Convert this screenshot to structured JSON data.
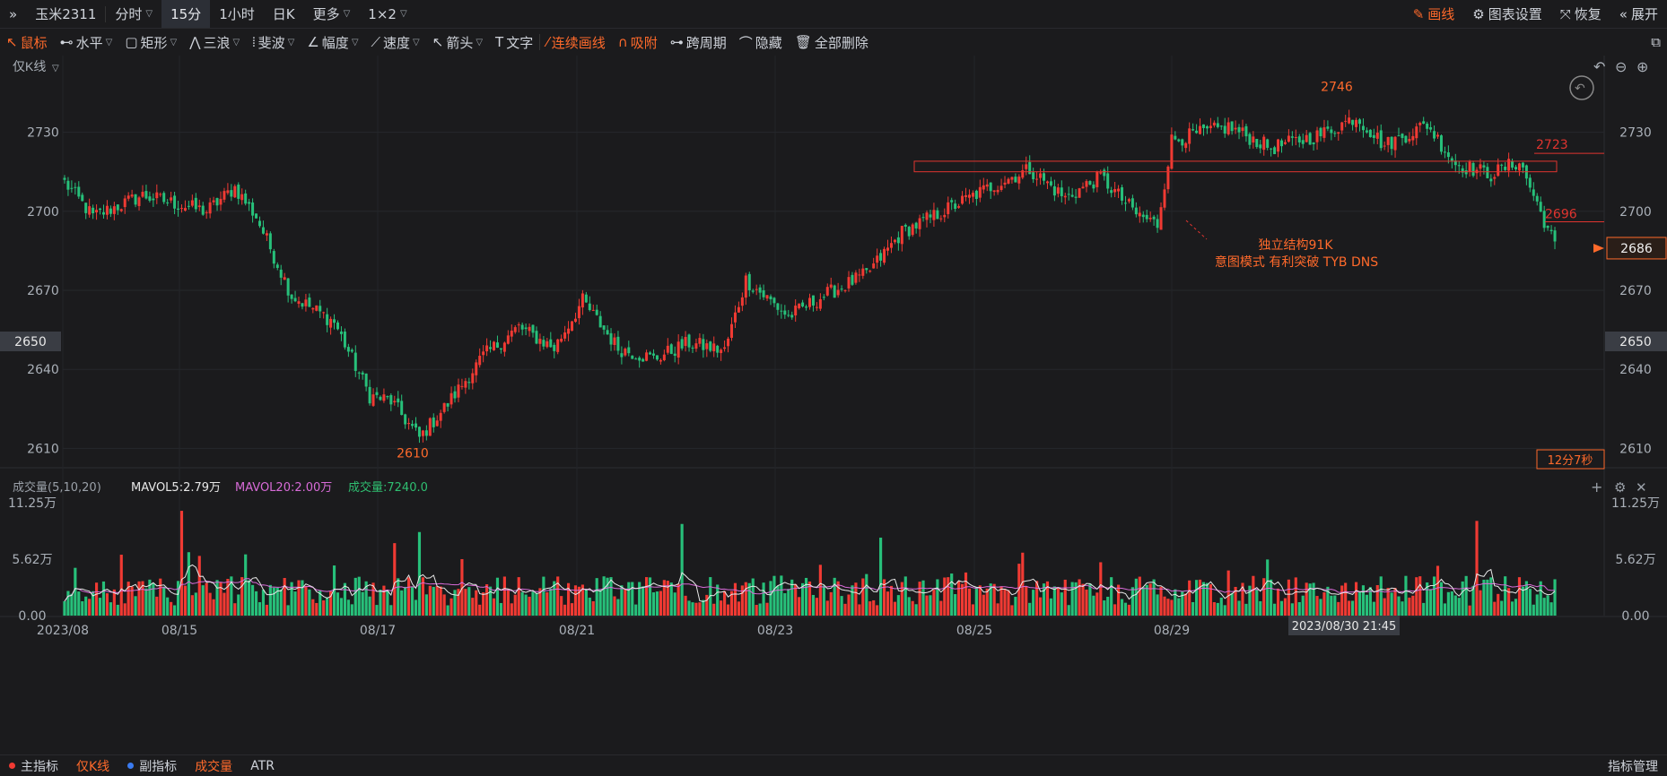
{
  "topbar": {
    "expand_glyph": "»",
    "symbol": "玉米2311",
    "tabs": [
      "分时",
      "15分",
      "1小时",
      "日K",
      "更多",
      "1×2"
    ],
    "active_tab": "15分",
    "draw": "画线",
    "settings": "图表设置",
    "restore": "恢复",
    "expand": "展开"
  },
  "toolbar": {
    "tools": [
      {
        "label": "鼠标",
        "icon": "cursor-icon",
        "active": true
      },
      {
        "label": "水平",
        "icon": "horizontal-line-icon"
      },
      {
        "label": "矩形",
        "icon": "rectangle-icon"
      },
      {
        "label": "三浪",
        "icon": "wave-icon"
      },
      {
        "label": "斐波",
        "icon": "fibonacci-icon"
      },
      {
        "label": "幅度",
        "icon": "range-icon"
      },
      {
        "label": "速度",
        "icon": "speed-icon"
      },
      {
        "label": "箭头",
        "icon": "arrow-icon"
      },
      {
        "label": "文字",
        "icon": "text-icon"
      }
    ],
    "continuous": "连续画线",
    "magnet": "吸附",
    "cross_period": "跨周期",
    "hide": "隐藏",
    "delete_all": "全部删除"
  },
  "chart_meta": {
    "kline_mode": "仅K线",
    "annotation_line1": "独立结构91K",
    "annotation_line2": "意图模式  有利突破  TYB DNS",
    "countdown": "12分7秒",
    "cursor_price": "2650",
    "cursor_time": "2023/08/30 21:45",
    "last_price": "2686",
    "volume_header": {
      "name": "成交量(5,10,20)",
      "mavol5": "MAVOL5:2.79万",
      "mavol20": "MAVOL20:2.00万",
      "vol": "成交量:7240.0"
    },
    "colors": {
      "up": "#f03a33",
      "down": "#27c07a",
      "accent": "#ff6a2b",
      "mavol5": "#e8e8e8",
      "mavol20": "#d86bd8",
      "vol_label": "#2fbf71"
    }
  },
  "chart_data": {
    "type": "candlestick",
    "price_axis": {
      "ticks": [
        2730,
        2700,
        2670,
        2640,
        2610
      ],
      "range": [
        2603,
        2754
      ]
    },
    "date_ticks": [
      "2023/08",
      "08/15",
      "08/17",
      "08/21",
      "08/23",
      "08/25",
      "08/29"
    ],
    "high_label": "2746",
    "low_label": "2610",
    "level_labels": [
      "2723",
      "2696"
    ],
    "volume_axis": {
      "ticks": [
        "11.25万",
        "5.62万",
        "0.00"
      ],
      "max": 11.25
    },
    "keypoints": [
      {
        "i": 0,
        "p": 2711
      },
      {
        "i": 8,
        "p": 2698
      },
      {
        "i": 22,
        "p": 2706
      },
      {
        "i": 40,
        "p": 2700
      },
      {
        "i": 48,
        "p": 2709
      },
      {
        "i": 54,
        "p": 2698
      },
      {
        "i": 64,
        "p": 2668
      },
      {
        "i": 76,
        "p": 2658
      },
      {
        "i": 86,
        "p": 2630
      },
      {
        "i": 92,
        "p": 2628
      },
      {
        "i": 100,
        "p": 2614
      },
      {
        "i": 108,
        "p": 2627
      },
      {
        "i": 118,
        "p": 2645
      },
      {
        "i": 128,
        "p": 2656
      },
      {
        "i": 138,
        "p": 2648
      },
      {
        "i": 146,
        "p": 2666
      },
      {
        "i": 156,
        "p": 2648
      },
      {
        "i": 166,
        "p": 2644
      },
      {
        "i": 176,
        "p": 2650
      },
      {
        "i": 186,
        "p": 2647
      },
      {
        "i": 192,
        "p": 2674
      },
      {
        "i": 204,
        "p": 2660
      },
      {
        "i": 214,
        "p": 2668
      },
      {
        "i": 226,
        "p": 2676
      },
      {
        "i": 236,
        "p": 2692
      },
      {
        "i": 252,
        "p": 2703
      },
      {
        "i": 262,
        "p": 2710
      },
      {
        "i": 272,
        "p": 2716
      },
      {
        "i": 282,
        "p": 2705
      },
      {
        "i": 292,
        "p": 2713
      },
      {
        "i": 302,
        "p": 2699
      },
      {
        "i": 308,
        "p": 2695
      },
      {
        "i": 312,
        "p": 2727
      },
      {
        "i": 328,
        "p": 2732
      },
      {
        "i": 340,
        "p": 2724
      },
      {
        "i": 354,
        "p": 2729
      },
      {
        "i": 364,
        "p": 2736
      },
      {
        "i": 372,
        "p": 2725
      },
      {
        "i": 384,
        "p": 2733
      },
      {
        "i": 392,
        "p": 2718
      },
      {
        "i": 402,
        "p": 2714
      },
      {
        "i": 410,
        "p": 2719
      },
      {
        "i": 414,
        "p": 2706
      },
      {
        "i": 420,
        "p": 2687
      }
    ],
    "n_bars": 421
  },
  "bottombar": {
    "items": [
      "主指标",
      "仅K线",
      "副指标",
      "成交量",
      "ATR"
    ],
    "manage": "指标管理"
  }
}
